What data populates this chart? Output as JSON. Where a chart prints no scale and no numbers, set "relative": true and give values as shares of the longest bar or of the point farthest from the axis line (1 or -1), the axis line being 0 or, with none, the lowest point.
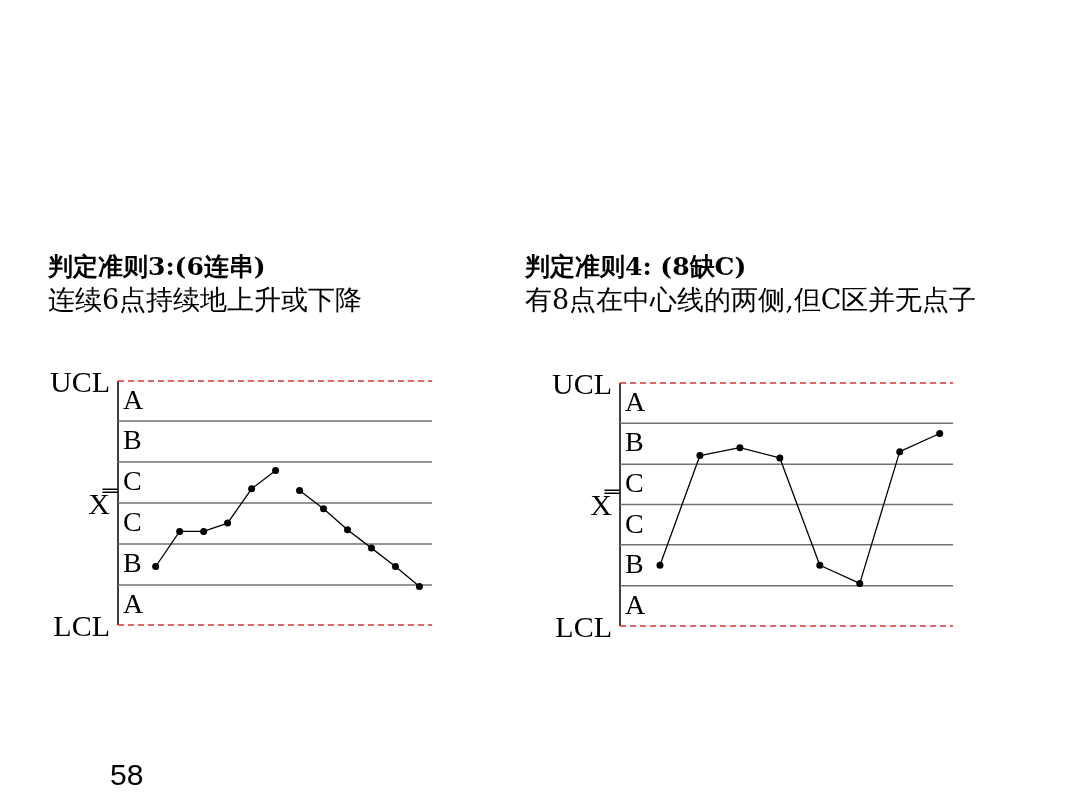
{
  "chart_data": [
    {
      "type": "line",
      "title": "判定准则3:(6连串)",
      "subtitle": "连续6点持续地上升或下降",
      "categories": [
        null,
        null,
        null,
        null,
        null,
        null,
        null,
        null,
        null,
        null,
        null,
        null
      ],
      "relative": true,
      "marker": "circle",
      "line_style": "solid",
      "series": [
        {
          "color": "#000000",
          "values": [
            -0.76,
            -0.34,
            -0.34,
            -0.24,
            0.17,
            0.39,
            null,
            null,
            null,
            null,
            null,
            null
          ]
        },
        {
          "color": "#000000",
          "values": [
            null,
            null,
            null,
            null,
            null,
            null,
            0.15,
            -0.07,
            -0.32,
            -0.54,
            -0.76,
            -1
          ]
        }
      ],
      "ref_lines": [
        {
          "axis": "y",
          "value": 1.46,
          "label": "UCL",
          "color": "#e03030",
          "line_style": "dashed"
        },
        {
          "axis": "y",
          "value": 0.98,
          "color": "#707070",
          "line_style": "solid"
        },
        {
          "axis": "y",
          "value": 0.49,
          "color": "#707070",
          "line_style": "solid"
        },
        {
          "axis": "y",
          "value": 0,
          "label": "X̿",
          "color": "#707070",
          "line_style": "solid"
        },
        {
          "axis": "y",
          "value": -0.49,
          "color": "#707070",
          "line_style": "solid"
        },
        {
          "axis": "y",
          "value": -0.98,
          "color": "#707070",
          "line_style": "solid"
        },
        {
          "axis": "y",
          "value": -1.46,
          "label": "LCL",
          "color": "#e03030",
          "line_style": "dashed"
        }
      ],
      "annotations": [
        "A",
        "B",
        "C",
        "C",
        "B",
        "A",
        "58"
      ]
    },
    {
      "type": "line",
      "title": "判定准则4: (8缺C)",
      "subtitle": "有8点在中心线的两侧,但C区并无点子",
      "categories": [
        null,
        null,
        null,
        null,
        null,
        null,
        null,
        null
      ],
      "relative": true,
      "marker": "circle",
      "line_style": "solid",
      "series": [
        {
          "color": "#000000",
          "values": [
            -0.77,
            0.62,
            0.72,
            0.59,
            -0.77,
            -1,
            0.67,
            0.9
          ]
        }
      ],
      "ref_lines": [
        {
          "axis": "y",
          "value": 1.54,
          "label": "UCL",
          "color": "#e03030",
          "line_style": "dashed"
        },
        {
          "axis": "y",
          "value": 1.03,
          "color": "#707070",
          "line_style": "solid"
        },
        {
          "axis": "y",
          "value": 0.51,
          "color": "#707070",
          "line_style": "solid"
        },
        {
          "axis": "y",
          "value": 0,
          "label": "X̿",
          "color": "#707070",
          "line_style": "solid"
        },
        {
          "axis": "y",
          "value": -0.51,
          "color": "#707070",
          "line_style": "solid"
        },
        {
          "axis": "y",
          "value": -1.03,
          "color": "#707070",
          "line_style": "solid"
        },
        {
          "axis": "y",
          "value": -1.54,
          "label": "LCL",
          "color": "#e03030",
          "line_style": "dashed"
        }
      ],
      "annotations": [
        "A",
        "B",
        "C",
        "C",
        "B",
        "A"
      ]
    }
  ]
}
